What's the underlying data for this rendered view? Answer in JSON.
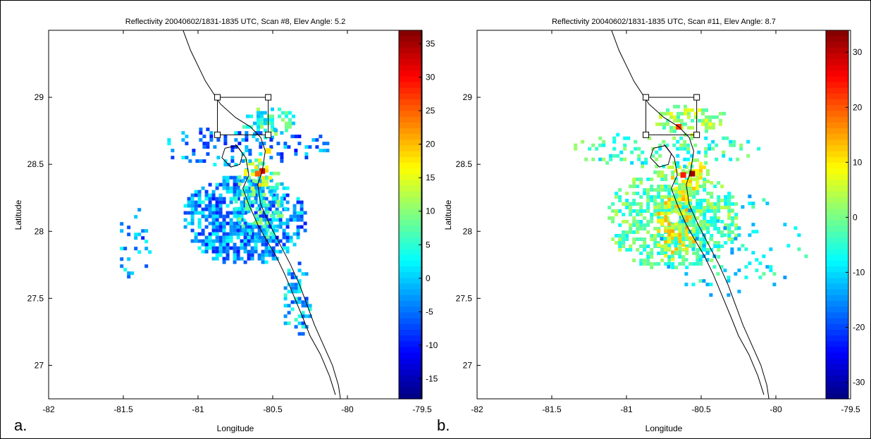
{
  "chart_data": [
    {
      "type": "heatmap",
      "panel_label": "a.",
      "title": "Reflectivity 20040602/1831-1835 UTC, Scan #8, Elev Angle: 5.2",
      "xlabel": "Longitude",
      "ylabel": "Latitude",
      "xlim": [
        -82,
        -79.5
      ],
      "ylim": [
        26.75,
        29.5
      ],
      "xticks": [
        -82,
        -81.5,
        -81,
        -80.5,
        -80,
        -79.5
      ],
      "xtick_labels": [
        "-82",
        "-81.5",
        "-81",
        "-80.5",
        "-80",
        "-79.5"
      ],
      "yticks": [
        27,
        27.5,
        28,
        28.5,
        29
      ],
      "ytick_labels": [
        "27",
        "27.5",
        "28",
        "28.5",
        "29"
      ],
      "colorbar": {
        "clim": [
          -18,
          37
        ],
        "ticks": [
          35,
          30,
          25,
          20,
          15,
          10,
          5,
          0,
          -5,
          -10,
          -15
        ],
        "tick_labels": [
          "35",
          "30",
          "25",
          "20",
          "15",
          "10",
          "5",
          "0",
          "-5",
          "-10",
          "-15"
        ],
        "colormap": "jet"
      },
      "radar_center": [
        -80.65,
        28.1
      ],
      "box": {
        "lon": [
          -80.87,
          -80.53
        ],
        "lat": [
          28.72,
          29.0
        ]
      },
      "echo_regions": [
        {
          "lon": -80.7,
          "lat": 28.1,
          "r_lon": 0.42,
          "r_lat": 0.34,
          "value": -3,
          "density": 0.85
        },
        {
          "lon": -80.6,
          "lat": 28.25,
          "r_lon": 0.18,
          "r_lat": 0.3,
          "value": 5,
          "density": 0.45
        },
        {
          "lon": -80.62,
          "lat": 28.45,
          "r_lon": 0.12,
          "r_lat": 0.12,
          "value": 12,
          "density": 0.5
        },
        {
          "lon": -80.55,
          "lat": 28.83,
          "r_lon": 0.2,
          "r_lat": 0.12,
          "value": 5,
          "density": 0.55
        },
        {
          "lon": -80.7,
          "lat": 28.65,
          "r_lon": 0.6,
          "r_lat": 0.15,
          "value": -4,
          "density": 0.3
        },
        {
          "lon": -80.35,
          "lat": 27.5,
          "r_lon": 0.1,
          "r_lat": 0.3,
          "value": -1,
          "density": 0.45
        },
        {
          "lon": -81.45,
          "lat": 27.9,
          "r_lon": 0.12,
          "r_lat": 0.3,
          "value": -3,
          "density": 0.25
        }
      ],
      "hot_spots": [
        {
          "lon": -80.57,
          "lat": 28.45,
          "value": 32
        },
        {
          "lon": -80.6,
          "lat": 28.43,
          "value": 25
        },
        {
          "lon": -80.53,
          "lat": 28.6,
          "value": 18
        }
      ]
    },
    {
      "type": "heatmap",
      "panel_label": "b.",
      "title": "Reflectivity 20040602/1831-1835 UTC, Scan #11, Elev Angle: 8.7",
      "xlabel": "Longitude",
      "ylabel": "Latitude",
      "xlim": [
        -82,
        -79.5
      ],
      "ylim": [
        26.75,
        29.5
      ],
      "xticks": [
        -82,
        -81.5,
        -81,
        -80.5,
        -80,
        -79.5
      ],
      "xtick_labels": [
        "-82",
        "-81.5",
        "-81",
        "-80.5",
        "-80",
        "-79.5"
      ],
      "yticks": [
        27,
        27.5,
        28,
        28.5,
        29
      ],
      "ytick_labels": [
        "27",
        "27.5",
        "28",
        "28.5",
        "29"
      ],
      "colorbar": {
        "clim": [
          -33,
          34
        ],
        "ticks": [
          30,
          20,
          10,
          0,
          -10,
          -20,
          -30
        ],
        "tick_labels": [
          "30",
          "20",
          "10",
          "0",
          "-10",
          "-20",
          "-30"
        ],
        "colormap": "jet"
      },
      "radar_center": [
        -80.68,
        28.1
      ],
      "box": {
        "lon": [
          -80.87,
          -80.53
        ],
        "lat": [
          28.72,
          29.0
        ]
      },
      "echo_regions": [
        {
          "lon": -80.7,
          "lat": 28.1,
          "r_lon": 0.45,
          "r_lat": 0.38,
          "value": -2,
          "density": 0.8
        },
        {
          "lon": -80.68,
          "lat": 28.05,
          "r_lon": 0.14,
          "r_lat": 0.28,
          "value": 8,
          "density": 0.55
        },
        {
          "lon": -80.6,
          "lat": 28.42,
          "r_lon": 0.15,
          "r_lat": 0.15,
          "value": 6,
          "density": 0.5
        },
        {
          "lon": -80.58,
          "lat": 28.85,
          "r_lon": 0.25,
          "r_lat": 0.12,
          "value": 2,
          "density": 0.55
        },
        {
          "lon": -80.75,
          "lat": 28.62,
          "r_lon": 0.65,
          "r_lat": 0.14,
          "value": -4,
          "density": 0.3
        },
        {
          "lon": -80.3,
          "lat": 27.9,
          "r_lon": 0.5,
          "r_lat": 0.4,
          "value": -8,
          "density": 0.15
        }
      ],
      "hot_spots": [
        {
          "lon": -80.56,
          "lat": 28.43,
          "value": 32
        },
        {
          "lon": -80.62,
          "lat": 28.42,
          "value": 24
        },
        {
          "lon": -80.65,
          "lat": 28.78,
          "value": 22
        }
      ]
    }
  ]
}
